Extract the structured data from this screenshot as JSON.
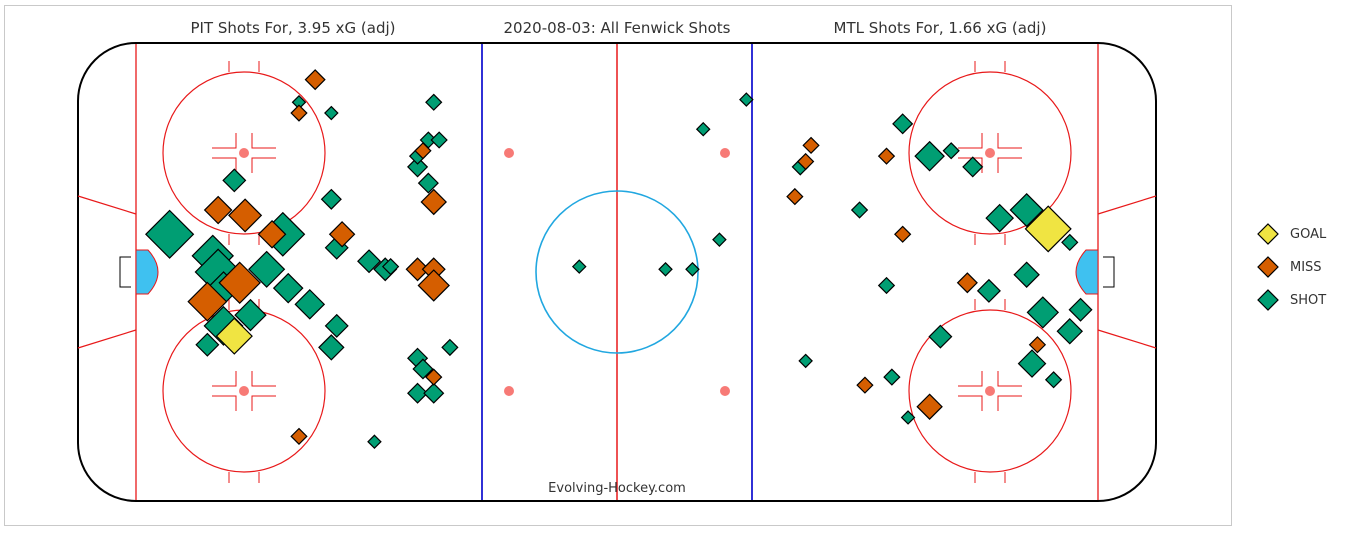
{
  "titles": {
    "left": "PIT Shots For, 3.95 xG (adj)",
    "center": "2020-08-03: All Fenwick Shots",
    "right": "MTL Shots For, 1.66 xG (adj)"
  },
  "watermark": "Evolving-Hockey.com",
  "legend": {
    "placement": "right",
    "items": [
      {
        "label": "GOAL",
        "color": "#f0e442"
      },
      {
        "label": "MISS",
        "color": "#d55e00"
      },
      {
        "label": "SHOT",
        "color": "#009e73"
      }
    ]
  },
  "colors": {
    "goal": "#f0e442",
    "miss": "#d55e00",
    "shot": "#009e73",
    "rink_red": "#e8191a",
    "blue_line": "#1a1ad2",
    "crease": "#3fc1f0",
    "center_circle": "#21a7e0",
    "faceoff_dot": "#f77a76"
  },
  "chart_data": {
    "type": "scatter",
    "x_unit": "feet (rink x, -100 to 100)",
    "y_unit": "feet (rink y, -42.5 to 42.5)",
    "xlim": [
      -100,
      100
    ],
    "ylim": [
      -42.5,
      42.5
    ],
    "grid": false,
    "size_encoding": "expected goals (xG)",
    "series": [
      {
        "name": "GOAL",
        "points": [
          {
            "x": -71,
            "y": -11.9,
            "xg": 0.1
          },
          {
            "x": 80,
            "y": 8,
            "xg": 0.18
          }
        ]
      },
      {
        "name": "MISS",
        "points": [
          {
            "x": -56,
            "y": 35.7,
            "xg": 0.02
          },
          {
            "x": -59,
            "y": 29.5,
            "xg": 0.01
          },
          {
            "x": -74,
            "y": 11.5,
            "xg": 0.05
          },
          {
            "x": -69,
            "y": 10.5,
            "xg": 0.08
          },
          {
            "x": -64,
            "y": 7,
            "xg": 0.05
          },
          {
            "x": -51,
            "y": 7,
            "xg": 0.04
          },
          {
            "x": -76,
            "y": -5.5,
            "xg": 0.12
          },
          {
            "x": -70,
            "y": -2,
            "xg": 0.14
          },
          {
            "x": -36,
            "y": 22.5,
            "xg": 0.01
          },
          {
            "x": -34,
            "y": 13,
            "xg": 0.04
          },
          {
            "x": -37,
            "y": 0.5,
            "xg": 0.03
          },
          {
            "x": -34,
            "y": 0.5,
            "xg": 0.03
          },
          {
            "x": -34,
            "y": -2.5,
            "xg": 0.07
          },
          {
            "x": -34,
            "y": -19.5,
            "xg": 0.01
          },
          {
            "x": -59,
            "y": -30.5,
            "xg": 0.01
          },
          {
            "x": 36,
            "y": 23.5,
            "xg": 0.01
          },
          {
            "x": 35,
            "y": 20.5,
            "xg": 0.01
          },
          {
            "x": 33,
            "y": 14,
            "xg": 0.01
          },
          {
            "x": 50,
            "y": 21.5,
            "xg": 0.01
          },
          {
            "x": 53,
            "y": 7,
            "xg": 0.01
          },
          {
            "x": 65,
            "y": -2,
            "xg": 0.02
          },
          {
            "x": 78,
            "y": -13.5,
            "xg": 0.01
          },
          {
            "x": 46,
            "y": -21,
            "xg": 0.01
          },
          {
            "x": 58,
            "y": -25,
            "xg": 0.04
          }
        ]
      },
      {
        "name": "SHOT",
        "points": [
          {
            "x": -59,
            "y": 31.5,
            "xg": 0.005
          },
          {
            "x": -53,
            "y": 29.5,
            "xg": 0.005
          },
          {
            "x": -71,
            "y": 17,
            "xg": 0.03
          },
          {
            "x": -53,
            "y": 13.5,
            "xg": 0.02
          },
          {
            "x": -83,
            "y": 7,
            "xg": 0.2
          },
          {
            "x": -75,
            "y": 3,
            "xg": 0.14
          },
          {
            "x": -74,
            "y": 0,
            "xg": 0.18
          },
          {
            "x": -73,
            "y": -3,
            "xg": 0.08
          },
          {
            "x": -62,
            "y": 7,
            "xg": 0.16
          },
          {
            "x": -65,
            "y": 0.5,
            "xg": 0.1
          },
          {
            "x": -61,
            "y": -3,
            "xg": 0.06
          },
          {
            "x": -57,
            "y": -6,
            "xg": 0.06
          },
          {
            "x": -68,
            "y": -8,
            "xg": 0.07
          },
          {
            "x": -73,
            "y": -10,
            "xg": 0.12
          },
          {
            "x": -76,
            "y": -13.5,
            "xg": 0.03
          },
          {
            "x": -52,
            "y": 4.5,
            "xg": 0.03
          },
          {
            "x": -52,
            "y": -10,
            "xg": 0.03
          },
          {
            "x": -53,
            "y": -14,
            "xg": 0.04
          },
          {
            "x": -43,
            "y": 0.5,
            "xg": 0.03
          },
          {
            "x": -46,
            "y": 2,
            "xg": 0.03
          },
          {
            "x": -42,
            "y": 1,
            "xg": 0.01
          },
          {
            "x": -37,
            "y": 19.5,
            "xg": 0.02
          },
          {
            "x": -35,
            "y": 16.5,
            "xg": 0.02
          },
          {
            "x": -34,
            "y": 31.5,
            "xg": 0.01
          },
          {
            "x": -35,
            "y": 24.5,
            "xg": 0.01
          },
          {
            "x": -33,
            "y": 24.5,
            "xg": 0.01
          },
          {
            "x": -37,
            "y": 21.5,
            "xg": 0.01
          },
          {
            "x": -37,
            "y": -16,
            "xg": 0.02
          },
          {
            "x": -36,
            "y": -18,
            "xg": 0.02
          },
          {
            "x": -37,
            "y": -22.5,
            "xg": 0.02
          },
          {
            "x": -34,
            "y": -22.5,
            "xg": 0.02
          },
          {
            "x": -31,
            "y": -14,
            "xg": 0.01
          },
          {
            "x": -45,
            "y": -31.5,
            "xg": 0.005
          },
          {
            "x": 24,
            "y": 32,
            "xg": 0.005
          },
          {
            "x": 16,
            "y": 26.5,
            "xg": 0.005
          },
          {
            "x": 19,
            "y": 6,
            "xg": 0.005
          },
          {
            "x": -7,
            "y": 1,
            "xg": 0.005
          },
          {
            "x": 9,
            "y": 0.5,
            "xg": 0.005
          },
          {
            "x": 14,
            "y": 0.5,
            "xg": 0.005
          },
          {
            "x": 53,
            "y": 27.5,
            "xg": 0.02
          },
          {
            "x": 58,
            "y": 21.5,
            "xg": 0.06
          },
          {
            "x": 62,
            "y": 22.5,
            "xg": 0.01
          },
          {
            "x": 66,
            "y": 19.5,
            "xg": 0.02
          },
          {
            "x": 34,
            "y": 19.5,
            "xg": 0.01
          },
          {
            "x": 45,
            "y": 11.5,
            "xg": 0.01
          },
          {
            "x": 71,
            "y": 10,
            "xg": 0.05
          },
          {
            "x": 76,
            "y": 11.5,
            "xg": 0.08
          },
          {
            "x": 84,
            "y": 5.5,
            "xg": 0.01
          },
          {
            "x": 76,
            "y": -0.5,
            "xg": 0.04
          },
          {
            "x": 69,
            "y": -3.5,
            "xg": 0.03
          },
          {
            "x": 50,
            "y": -2.5,
            "xg": 0.01
          },
          {
            "x": 79,
            "y": -7.5,
            "xg": 0.07
          },
          {
            "x": 86,
            "y": -7,
            "xg": 0.03
          },
          {
            "x": 84,
            "y": -11,
            "xg": 0.04
          },
          {
            "x": 60,
            "y": -12,
            "xg": 0.03
          },
          {
            "x": 77,
            "y": -17,
            "xg": 0.05
          },
          {
            "x": 81,
            "y": -20,
            "xg": 0.01
          },
          {
            "x": 35,
            "y": -16.5,
            "xg": 0.005
          },
          {
            "x": 51,
            "y": -19.5,
            "xg": 0.01
          },
          {
            "x": 54,
            "y": -27,
            "xg": 0.005
          }
        ]
      }
    ]
  }
}
